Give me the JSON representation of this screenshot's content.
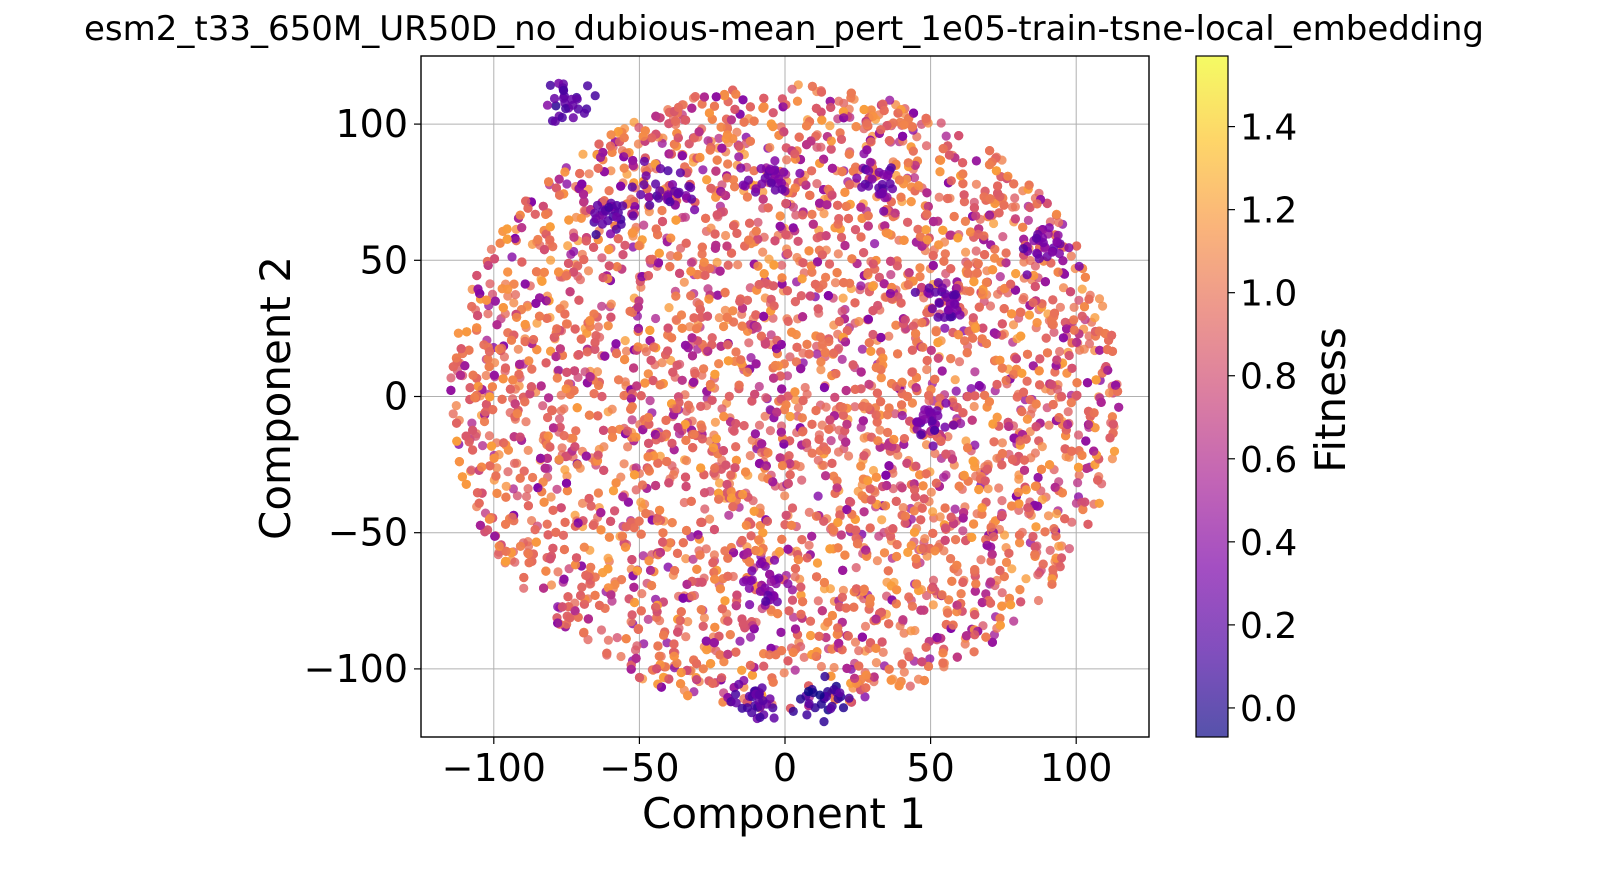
{
  "chart_data": {
    "type": "scatter",
    "title": "esm2_t33_650M_UR50D_no_dubious-mean_pert_1e05-train-tsne-local_embedding",
    "xlabel": "Component 1",
    "ylabel": "Component 2",
    "xlim": [
      -125,
      125
    ],
    "ylim": [
      -125,
      125
    ],
    "xticks": [
      -100,
      -50,
      0,
      50,
      100
    ],
    "yticks": [
      -100,
      -50,
      0,
      50,
      100
    ],
    "xtick_labels": [
      "−100",
      "−50",
      "0",
      "50",
      "100"
    ],
    "ytick_labels": [
      "−100",
      "−50",
      "0",
      "50",
      "100"
    ],
    "grid": true,
    "colorbar": {
      "label": "Fitness",
      "colormap": "plasma",
      "vmin": -0.07,
      "vmax": 1.57,
      "ticks": [
        0.0,
        0.2,
        0.4,
        0.6,
        0.8,
        1.0,
        1.2,
        1.4
      ],
      "tick_labels": [
        "0.0",
        "0.2",
        "0.4",
        "0.6",
        "0.8",
        "1.0",
        "1.2",
        "1.4"
      ]
    },
    "point_cloud": {
      "shape": "disk",
      "center": [
        0,
        0
      ],
      "radius": 115,
      "typical_fitness": 1.0,
      "fitness_range": [
        0.1,
        1.2
      ]
    },
    "low_fitness_clusters": [
      {
        "x": -40,
        "y": 75,
        "fitness": 0.25
      },
      {
        "x": -5,
        "y": 78,
        "fitness": 0.3
      },
      {
        "x": 32,
        "y": 78,
        "fitness": 0.3
      },
      {
        "x": 90,
        "y": 55,
        "fitness": 0.3
      },
      {
        "x": -60,
        "y": 68,
        "fitness": 0.2
      },
      {
        "x": 13,
        "y": -112,
        "fitness": 0.05
      },
      {
        "x": -10,
        "y": -112,
        "fitness": 0.2
      },
      {
        "x": 50,
        "y": -10,
        "fitness": 0.3
      },
      {
        "x": 55,
        "y": 35,
        "fitness": 0.25
      },
      {
        "x": -5,
        "y": -70,
        "fitness": 0.35
      },
      {
        "x": -75,
        "y": 108,
        "fitness": 0.2
      }
    ],
    "colors": {
      "grid": "#b0b0b0",
      "axes": "#000000"
    }
  }
}
